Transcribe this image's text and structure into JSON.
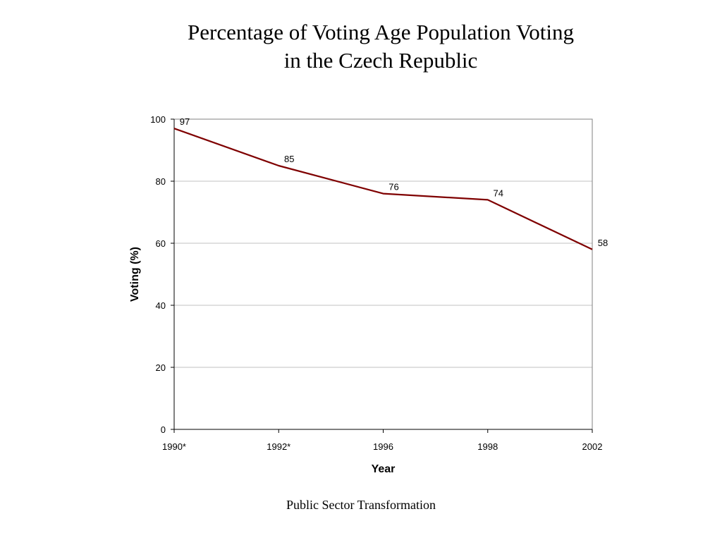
{
  "slide": {
    "title_line1": "Percentage of Voting Age Population Voting",
    "title_line2": "in the Czech Republic",
    "footer": "Public Sector Transformation"
  },
  "chart_data": {
    "type": "line",
    "categories": [
      "1990*",
      "1992*",
      "1996",
      "1998",
      "2002"
    ],
    "series": [
      {
        "values": [
          97,
          85,
          76,
          74,
          58
        ],
        "color": "#7f0000"
      }
    ],
    "data_labels": [
      "97",
      "85",
      "76",
      "74",
      "58"
    ],
    "xlabel": "Year",
    "ylabel": "Voting (%)",
    "ylim": [
      0,
      100
    ],
    "yticks": [
      0,
      20,
      40,
      60,
      80,
      100
    ],
    "grid": true,
    "grid_color": "#c0c0c0",
    "legend": "none"
  }
}
